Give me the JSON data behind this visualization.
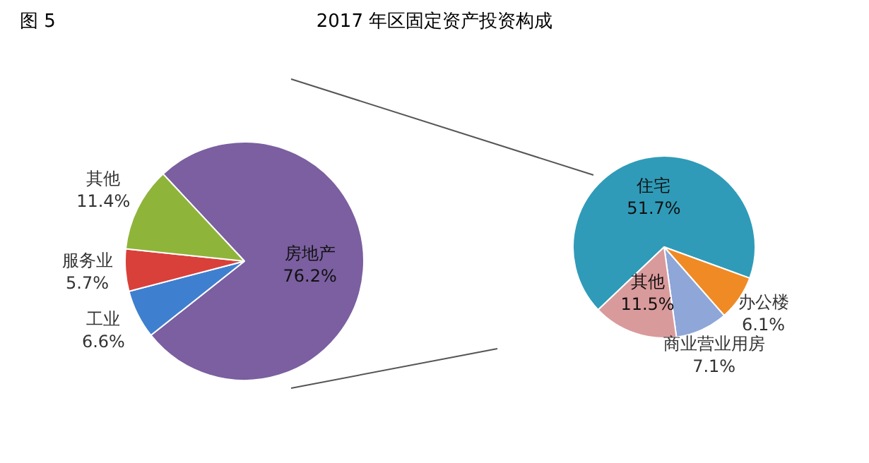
{
  "chart_data": [
    {
      "type": "pie",
      "title": "2017 年区固定资产投资构成",
      "annotations": [
        "图 5"
      ],
      "categories": [
        "房地产",
        "工业",
        "服务业",
        "其他"
      ],
      "values": [
        76.2,
        6.6,
        5.7,
        11.4
      ],
      "value_labels": [
        "76.2%",
        "6.6%",
        "5.7%",
        "11.4%"
      ],
      "colors": [
        "#7b5fa0",
        "#3f7fcf",
        "#d9403a",
        "#8fb43a"
      ]
    },
    {
      "type": "pie",
      "categories": [
        "住宅",
        "办公楼",
        "商业营业用房",
        "其他"
      ],
      "values": [
        51.7,
        6.1,
        7.1,
        11.5
      ],
      "value_labels": [
        "51.7%",
        "6.1%",
        "7.1%",
        "11.5%"
      ],
      "colors": [
        "#2f9bb8",
        "#f08a24",
        "#8ea6d8",
        "#d99a9c"
      ]
    }
  ]
}
